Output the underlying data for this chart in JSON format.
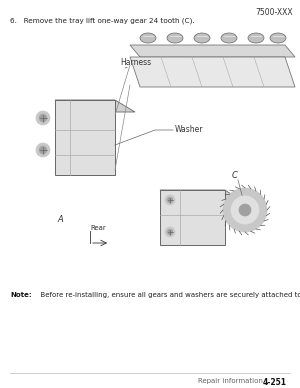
{
  "page_width": 3.0,
  "page_height": 3.88,
  "background_color": "#ffffff",
  "header_text": "7500-XXX",
  "header_fontsize": 5.5,
  "step_text": "6.   Remove the tray lift one-way gear 24 tooth (C).",
  "step_fontsize": 5.2,
  "note_bold": "Note:",
  "note_body": "  Before re-installing, ensure all gears and washers are securely attached to the bracket (A).",
  "note_fontsize": 5.0,
  "footer_left": "Repair information",
  "footer_right": "4-251",
  "footer_fontsize": 5.0
}
